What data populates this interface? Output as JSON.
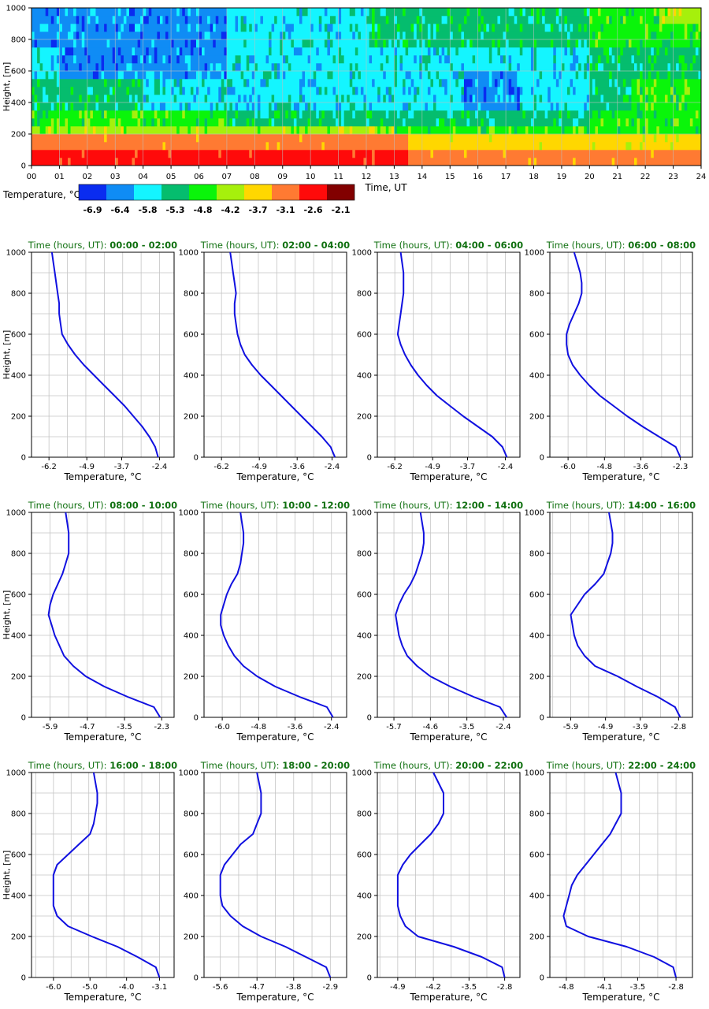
{
  "chart_data": [
    {
      "type": "heatmap",
      "xlabel": "Time, UT",
      "ylabel": "Height, [m]",
      "xlim": [
        0,
        24
      ],
      "ylim": [
        0,
        1000
      ],
      "x_ticks": [
        "00",
        "01",
        "02",
        "03",
        "04",
        "05",
        "06",
        "07",
        "08",
        "09",
        "10",
        "11",
        "12",
        "13",
        "14",
        "15",
        "16",
        "17",
        "18",
        "19",
        "20",
        "21",
        "22",
        "23",
        "24"
      ],
      "y_ticks": [
        "0",
        "200",
        "400",
        "600",
        "800",
        "1000"
      ],
      "legend": {
        "label": "Temperature, °C",
        "tick_labels": [
          "-6.9",
          "-6.4",
          "-5.8",
          "-5.3",
          "-4.8",
          "-4.2",
          "-3.7",
          "-3.1",
          "-2.6",
          "-2.1"
        ],
        "colors": [
          "#0a2cf0",
          "#0f8cf5",
          "#14f5ff",
          "#05bd6e",
          "#0af50a",
          "#a6f00c",
          "#ffd700",
          "#ff7a32",
          "#ff0a0a",
          "#820000"
        ]
      },
      "grid": true
    },
    {
      "type": "line",
      "title_prefix": "Time (hours, UT)",
      "title_times": [
        "00:00 - 02:00",
        "02:00 - 04:00",
        "04:00 - 06:00",
        "06:00 - 08:00",
        "08:00 - 10:00",
        "10:00 - 12:00",
        "12:00 - 14:00",
        "14:00 - 16:00",
        "16:00 - 18:00",
        "18:00 - 20:00",
        "20:00 - 22:00",
        "22:00 - 24:00"
      ],
      "xlabel": "Temperature, °C",
      "ylabel": "Height, [m]",
      "ylim": [
        0,
        1000
      ],
      "y_ticks": [
        "0",
        "200",
        "400",
        "600",
        "800",
        "1000"
      ],
      "heights": [
        0,
        50,
        100,
        150,
        200,
        250,
        300,
        350,
        400,
        450,
        500,
        550,
        600,
        650,
        700,
        750,
        800,
        850,
        900,
        950,
        1000
      ],
      "series_color": "#1010e0",
      "panels": [
        {
          "xlim": [
            -6.8,
            -1.9
          ],
          "x_ticks": [
            "-6.2",
            "-4.9",
            "-3.7",
            "-2.4"
          ],
          "x_tick_values": [
            -6.2,
            -4.9,
            -3.7,
            -2.4
          ],
          "temps": [
            -2.45,
            -2.55,
            -2.75,
            -3.0,
            -3.3,
            -3.6,
            -3.95,
            -4.3,
            -4.65,
            -5.0,
            -5.3,
            -5.55,
            -5.75,
            -5.8,
            -5.85,
            -5.85,
            -5.9,
            -5.95,
            -6.0,
            -6.05,
            -6.1
          ]
        },
        {
          "xlim": [
            -6.8,
            -1.9
          ],
          "x_ticks": [
            "-6.2",
            "-4.9",
            "-3.6",
            "-2.4"
          ],
          "x_tick_values": [
            -6.2,
            -4.9,
            -3.6,
            -2.4
          ],
          "temps": [
            -2.3,
            -2.45,
            -2.75,
            -3.1,
            -3.45,
            -3.8,
            -4.15,
            -4.5,
            -4.85,
            -5.15,
            -5.4,
            -5.55,
            -5.65,
            -5.7,
            -5.75,
            -5.75,
            -5.7,
            -5.75,
            -5.8,
            -5.85,
            -5.9
          ]
        },
        {
          "xlim": [
            -6.8,
            -1.9
          ],
          "x_ticks": [
            "-6.2",
            "-4.9",
            "-3.7",
            "-2.4"
          ],
          "x_tick_values": [
            -6.2,
            -4.9,
            -3.7,
            -2.4
          ],
          "temps": [
            -2.35,
            -2.5,
            -2.85,
            -3.35,
            -3.85,
            -4.3,
            -4.75,
            -5.1,
            -5.4,
            -5.65,
            -5.85,
            -6.0,
            -6.1,
            -6.05,
            -6.0,
            -5.95,
            -5.9,
            -5.9,
            -5.9,
            -5.95,
            -6.0
          ]
        },
        {
          "xlim": [
            -6.6,
            -1.9
          ],
          "x_ticks": [
            "-6.0",
            "-4.8",
            "-3.6",
            "-2.3"
          ],
          "x_tick_values": [
            -6.0,
            -4.8,
            -3.6,
            -2.3
          ],
          "temps": [
            -2.3,
            -2.45,
            -3.0,
            -3.55,
            -4.05,
            -4.5,
            -4.95,
            -5.3,
            -5.6,
            -5.85,
            -6.0,
            -6.05,
            -6.05,
            -5.95,
            -5.8,
            -5.65,
            -5.55,
            -5.55,
            -5.6,
            -5.7,
            -5.8
          ]
        },
        {
          "xlim": [
            -6.5,
            -1.9
          ],
          "x_ticks": [
            "-5.9",
            "-4.7",
            "-3.5",
            "-2.3"
          ],
          "x_tick_values": [
            -5.9,
            -4.7,
            -3.5,
            -2.3
          ],
          "temps": [
            -2.35,
            -2.55,
            -3.4,
            -4.15,
            -4.75,
            -5.15,
            -5.45,
            -5.6,
            -5.75,
            -5.85,
            -5.95,
            -5.9,
            -5.8,
            -5.65,
            -5.5,
            -5.4,
            -5.3,
            -5.3,
            -5.3,
            -5.35,
            -5.4
          ]
        },
        {
          "xlim": [
            -6.6,
            -1.9
          ],
          "x_ticks": [
            "-6.0",
            "-4.8",
            "-3.6",
            "-2.4"
          ],
          "x_tick_values": [
            -6.0,
            -4.8,
            -3.6,
            -2.4
          ],
          "temps": [
            -2.35,
            -2.55,
            -3.45,
            -4.25,
            -4.85,
            -5.3,
            -5.6,
            -5.8,
            -5.95,
            -6.05,
            -6.05,
            -5.95,
            -5.85,
            -5.7,
            -5.5,
            -5.4,
            -5.35,
            -5.3,
            -5.3,
            -5.35,
            -5.4
          ]
        },
        {
          "xlim": [
            -6.2,
            -1.9
          ],
          "x_ticks": [
            "-5.7",
            "-4.6",
            "-3.5",
            "-2.4"
          ],
          "x_tick_values": [
            -5.7,
            -4.6,
            -3.5,
            -2.4
          ],
          "temps": [
            -2.3,
            -2.5,
            -3.3,
            -4.0,
            -4.6,
            -5.0,
            -5.3,
            -5.45,
            -5.55,
            -5.6,
            -5.65,
            -5.55,
            -5.4,
            -5.2,
            -5.05,
            -4.95,
            -4.85,
            -4.8,
            -4.8,
            -4.85,
            -4.9
          ]
        },
        {
          "xlim": [
            -6.5,
            -2.4
          ],
          "x_ticks": [
            "-5.9",
            "-4.9",
            "-3.9",
            "-2.8"
          ],
          "x_tick_values": [
            -5.9,
            -4.9,
            -3.9,
            -2.8
          ],
          "temps": [
            -2.75,
            -2.9,
            -3.4,
            -4.0,
            -4.55,
            -5.2,
            -5.5,
            -5.7,
            -5.8,
            -5.85,
            -5.9,
            -5.7,
            -5.5,
            -5.2,
            -4.95,
            -4.85,
            -4.75,
            -4.7,
            -4.7,
            -4.75,
            -4.8
          ]
        },
        {
          "xlim": [
            -6.6,
            -2.7
          ],
          "x_ticks": [
            "-6.0",
            "-5.0",
            "-4.0",
            "-3.1"
          ],
          "x_tick_values": [
            -6.0,
            -5.0,
            -4.0,
            -3.1
          ],
          "temps": [
            -3.1,
            -3.2,
            -3.7,
            -4.25,
            -4.95,
            -5.6,
            -5.9,
            -6.0,
            -6.0,
            -6.0,
            -6.0,
            -5.9,
            -5.6,
            -5.3,
            -5.0,
            -4.9,
            -4.85,
            -4.8,
            -4.8,
            -4.85,
            -4.9
          ]
        },
        {
          "xlim": [
            -6.0,
            -2.5
          ],
          "x_ticks": [
            "-5.6",
            "-4.7",
            "-3.8",
            "-2.9"
          ],
          "x_tick_values": [
            -5.6,
            -4.7,
            -3.8,
            -2.9
          ],
          "temps": [
            -2.9,
            -3.0,
            -3.5,
            -4.0,
            -4.6,
            -5.05,
            -5.35,
            -5.55,
            -5.6,
            -5.6,
            -5.6,
            -5.5,
            -5.3,
            -5.1,
            -4.8,
            -4.7,
            -4.6,
            -4.6,
            -4.6,
            -4.65,
            -4.7
          ]
        },
        {
          "xlim": [
            -5.3,
            -2.5
          ],
          "x_ticks": [
            "-4.9",
            "-4.2",
            "-3.5",
            "-2.8"
          ],
          "x_tick_values": [
            -4.9,
            -4.2,
            -3.5,
            -2.8
          ],
          "temps": [
            -2.8,
            -2.85,
            -3.25,
            -3.8,
            -4.5,
            -4.75,
            -4.85,
            -4.9,
            -4.9,
            -4.9,
            -4.9,
            -4.8,
            -4.65,
            -4.45,
            -4.25,
            -4.1,
            -4.0,
            -4.0,
            -4.0,
            -4.1,
            -4.2
          ]
        },
        {
          "xlim": [
            -5.1,
            -2.5
          ],
          "x_ticks": [
            "-4.8",
            "-4.1",
            "-3.5",
            "-2.8"
          ],
          "x_tick_values": [
            -4.8,
            -4.1,
            -3.5,
            -2.8
          ],
          "temps": [
            -2.8,
            -2.85,
            -3.2,
            -3.7,
            -4.4,
            -4.8,
            -4.85,
            -4.8,
            -4.75,
            -4.7,
            -4.6,
            -4.45,
            -4.3,
            -4.15,
            -4.0,
            -3.9,
            -3.8,
            -3.8,
            -3.8,
            -3.85,
            -3.9
          ]
        }
      ]
    }
  ]
}
